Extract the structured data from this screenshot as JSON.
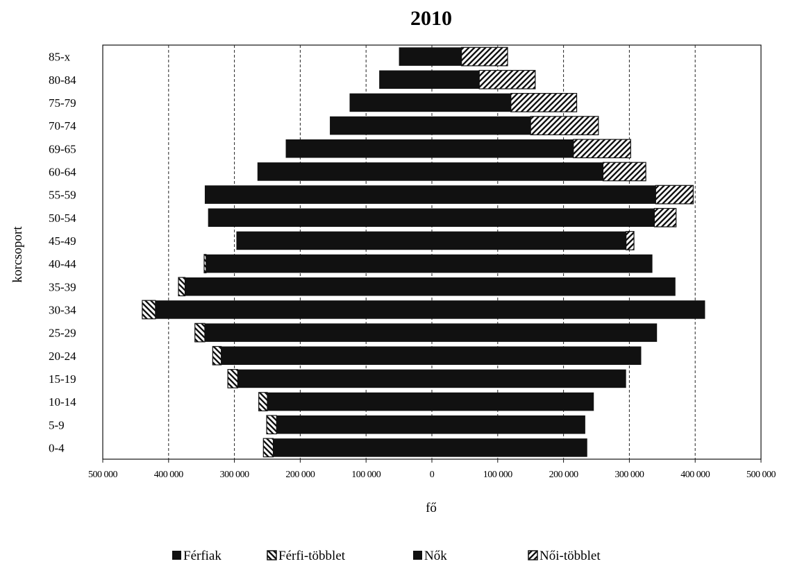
{
  "chart_data": {
    "type": "bar",
    "orientation": "horizontal",
    "title": "2010",
    "xlabel": "fő",
    "ylabel": "korcsoport",
    "xlim": [
      -500000,
      500000
    ],
    "x_ticks": [
      -500000,
      -400000,
      -300000,
      -200000,
      -100000,
      0,
      100000,
      200000,
      300000,
      400000,
      500000
    ],
    "x_tick_labels": [
      "500 000",
      "400 000",
      "300 000",
      "200 000",
      "100 000",
      "0",
      "100 000",
      "200 000",
      "300 000",
      "400 000",
      "500 000"
    ],
    "grid": "vertical-dashed",
    "legend_position": "bottom",
    "colors": {
      "bar": "#111111",
      "hatch": "#111111",
      "background": "#ffffff"
    },
    "categories": [
      "0-4",
      "5-9",
      "10-14",
      "15-19",
      "20-24",
      "25-29",
      "30-34",
      "35-39",
      "40-44",
      "45-49",
      "50-54",
      "55-59",
      "60-64",
      "69-65",
      "70-74",
      "75-79",
      "80-84",
      "85-x"
    ],
    "series": [
      {
        "name": "Férfiak",
        "side": "left",
        "values": [
          241000,
          236000,
          250000,
          295000,
          320000,
          345000,
          420000,
          375000,
          343000,
          297000,
          340000,
          345000,
          265000,
          222000,
          155000,
          125000,
          80000,
          50000
        ]
      },
      {
        "name": "Férfi-többlet",
        "side": "left",
        "values": [
          15000,
          15000,
          13000,
          15000,
          13000,
          15000,
          20000,
          10000,
          3000,
          0,
          0,
          0,
          0,
          0,
          0,
          0,
          0,
          0
        ]
      },
      {
        "name": "Nők",
        "side": "right",
        "values": [
          236000,
          233000,
          246000,
          295000,
          318000,
          342000,
          415000,
          370000,
          335000,
          295000,
          338000,
          340000,
          260000,
          215000,
          150000,
          120000,
          72000,
          45000
        ]
      },
      {
        "name": "Női-többlet",
        "side": "right",
        "values": [
          0,
          0,
          0,
          0,
          0,
          0,
          0,
          0,
          0,
          12000,
          33000,
          57000,
          65000,
          87000,
          103000,
          100000,
          85000,
          70000
        ]
      }
    ]
  }
}
